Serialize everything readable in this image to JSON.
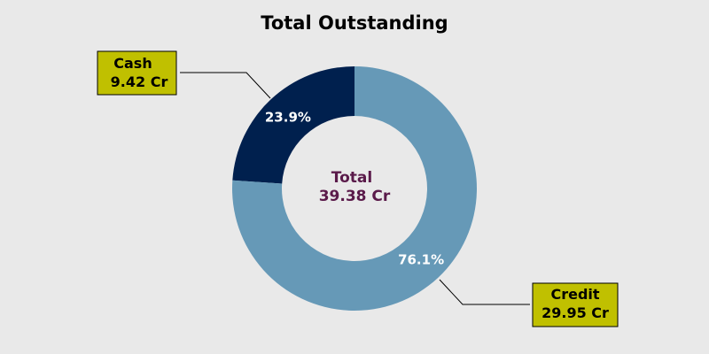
{
  "chart_data": {
    "type": "pie",
    "variant": "donut",
    "title": "Total Outstanding",
    "center_label": {
      "line1": "Total",
      "line2": "39.38 Cr"
    },
    "slices": [
      {
        "name": "Cash",
        "value": 9.42,
        "percent_label": "23.9%",
        "callout_line1": "Cash",
        "callout_line2": "9.42 Cr",
        "color": "#00204e"
      },
      {
        "name": "Credit",
        "value": 29.95,
        "percent_label": "76.1%",
        "callout_line1": "Credit",
        "callout_line2": "29.95 Cr",
        "color": "#6699b7"
      }
    ],
    "callout_box_color": "#c0c000",
    "center_text_color": "#5a1a4a",
    "legend": "none"
  }
}
